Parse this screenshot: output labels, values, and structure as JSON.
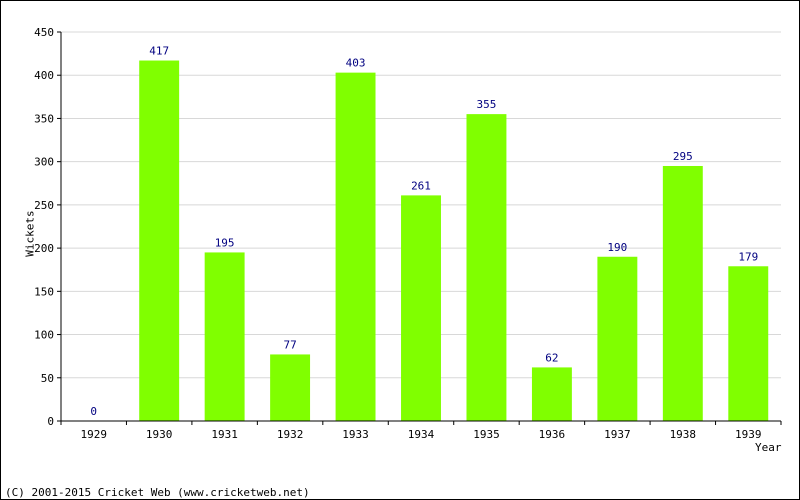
{
  "chart_data": {
    "type": "bar",
    "title": "",
    "xlabel": "Year",
    "ylabel": "Wickets",
    "categories": [
      "1929",
      "1930",
      "1931",
      "1932",
      "1933",
      "1934",
      "1935",
      "1936",
      "1937",
      "1938",
      "1939"
    ],
    "series": [
      {
        "values": [
          0,
          417,
          195,
          77,
          403,
          261,
          355,
          62,
          190,
          295,
          179
        ]
      }
    ],
    "ylim": [
      0,
      450
    ],
    "yticks": [
      0,
      50,
      100,
      150,
      200,
      250,
      300,
      350,
      400,
      450
    ],
    "grid": true,
    "legend": "none",
    "data_labels": true,
    "colors": {
      "bar": "#80ff00",
      "data_label": "#000080",
      "grid": "#d8d8d8",
      "axis": "#000000"
    }
  },
  "footer": {
    "copyright": "(C) 2001-2015 Cricket Web (www.cricketweb.net)"
  }
}
